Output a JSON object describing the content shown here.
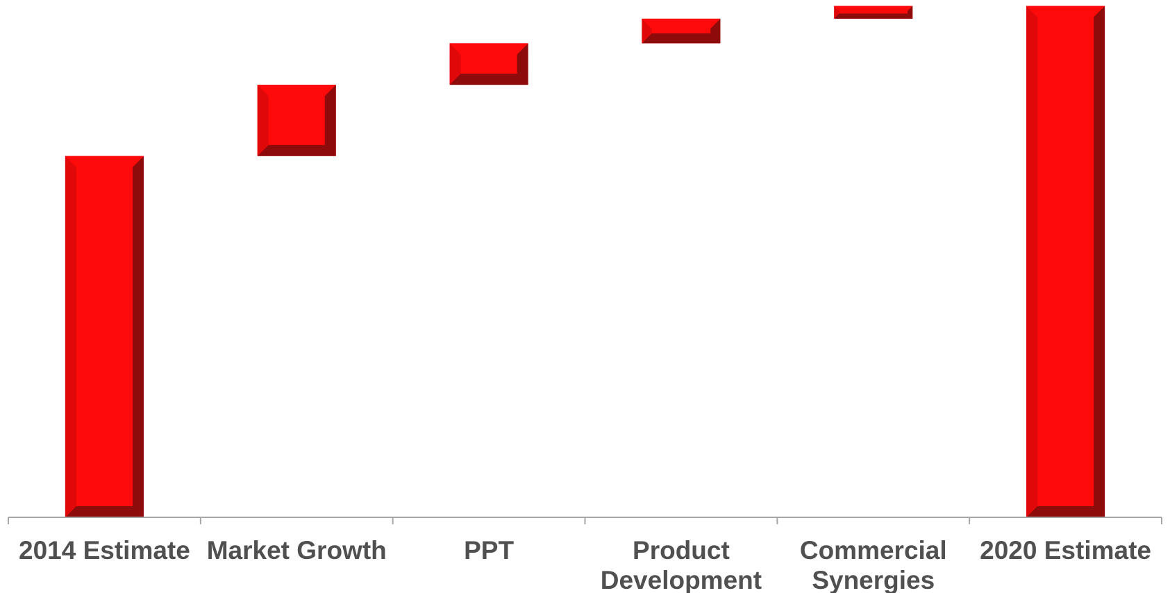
{
  "chart_data": {
    "type": "bar",
    "subtype": "waterfall",
    "title": "",
    "xlabel": "",
    "ylabel": "",
    "categories": [
      [
        "2014 Estimate"
      ],
      [
        "Market Growth"
      ],
      [
        "PPT"
      ],
      [
        "Product",
        "Development"
      ],
      [
        "Commercial",
        "Synergies"
      ],
      [
        "2020 Estimate"
      ]
    ],
    "bars": [
      {
        "category": "2014 Estimate",
        "kind": "total",
        "start": 0,
        "end": 70.5
      },
      {
        "category": "Market Growth",
        "kind": "increase",
        "start": 70.5,
        "end": 84.4
      },
      {
        "category": "PPT",
        "kind": "increase",
        "start": 84.4,
        "end": 92.5
      },
      {
        "category": "Product Development",
        "kind": "increase",
        "start": 92.5,
        "end": 97.3
      },
      {
        "category": "Commercial Synergies",
        "kind": "increase",
        "start": 97.3,
        "end": 99.8
      },
      {
        "category": "2020 Estimate",
        "kind": "total",
        "start": 0,
        "end": 99.8
      }
    ],
    "ylim": [
      0,
      100
    ],
    "grid": false,
    "legend": "none",
    "colors": {
      "bar_face": "#FF0A0A",
      "bar_bevel_light": "#E00808",
      "bar_bevel_dark": "#8E0B0B",
      "axis": "#A6A6A6",
      "label": "#505050"
    }
  }
}
